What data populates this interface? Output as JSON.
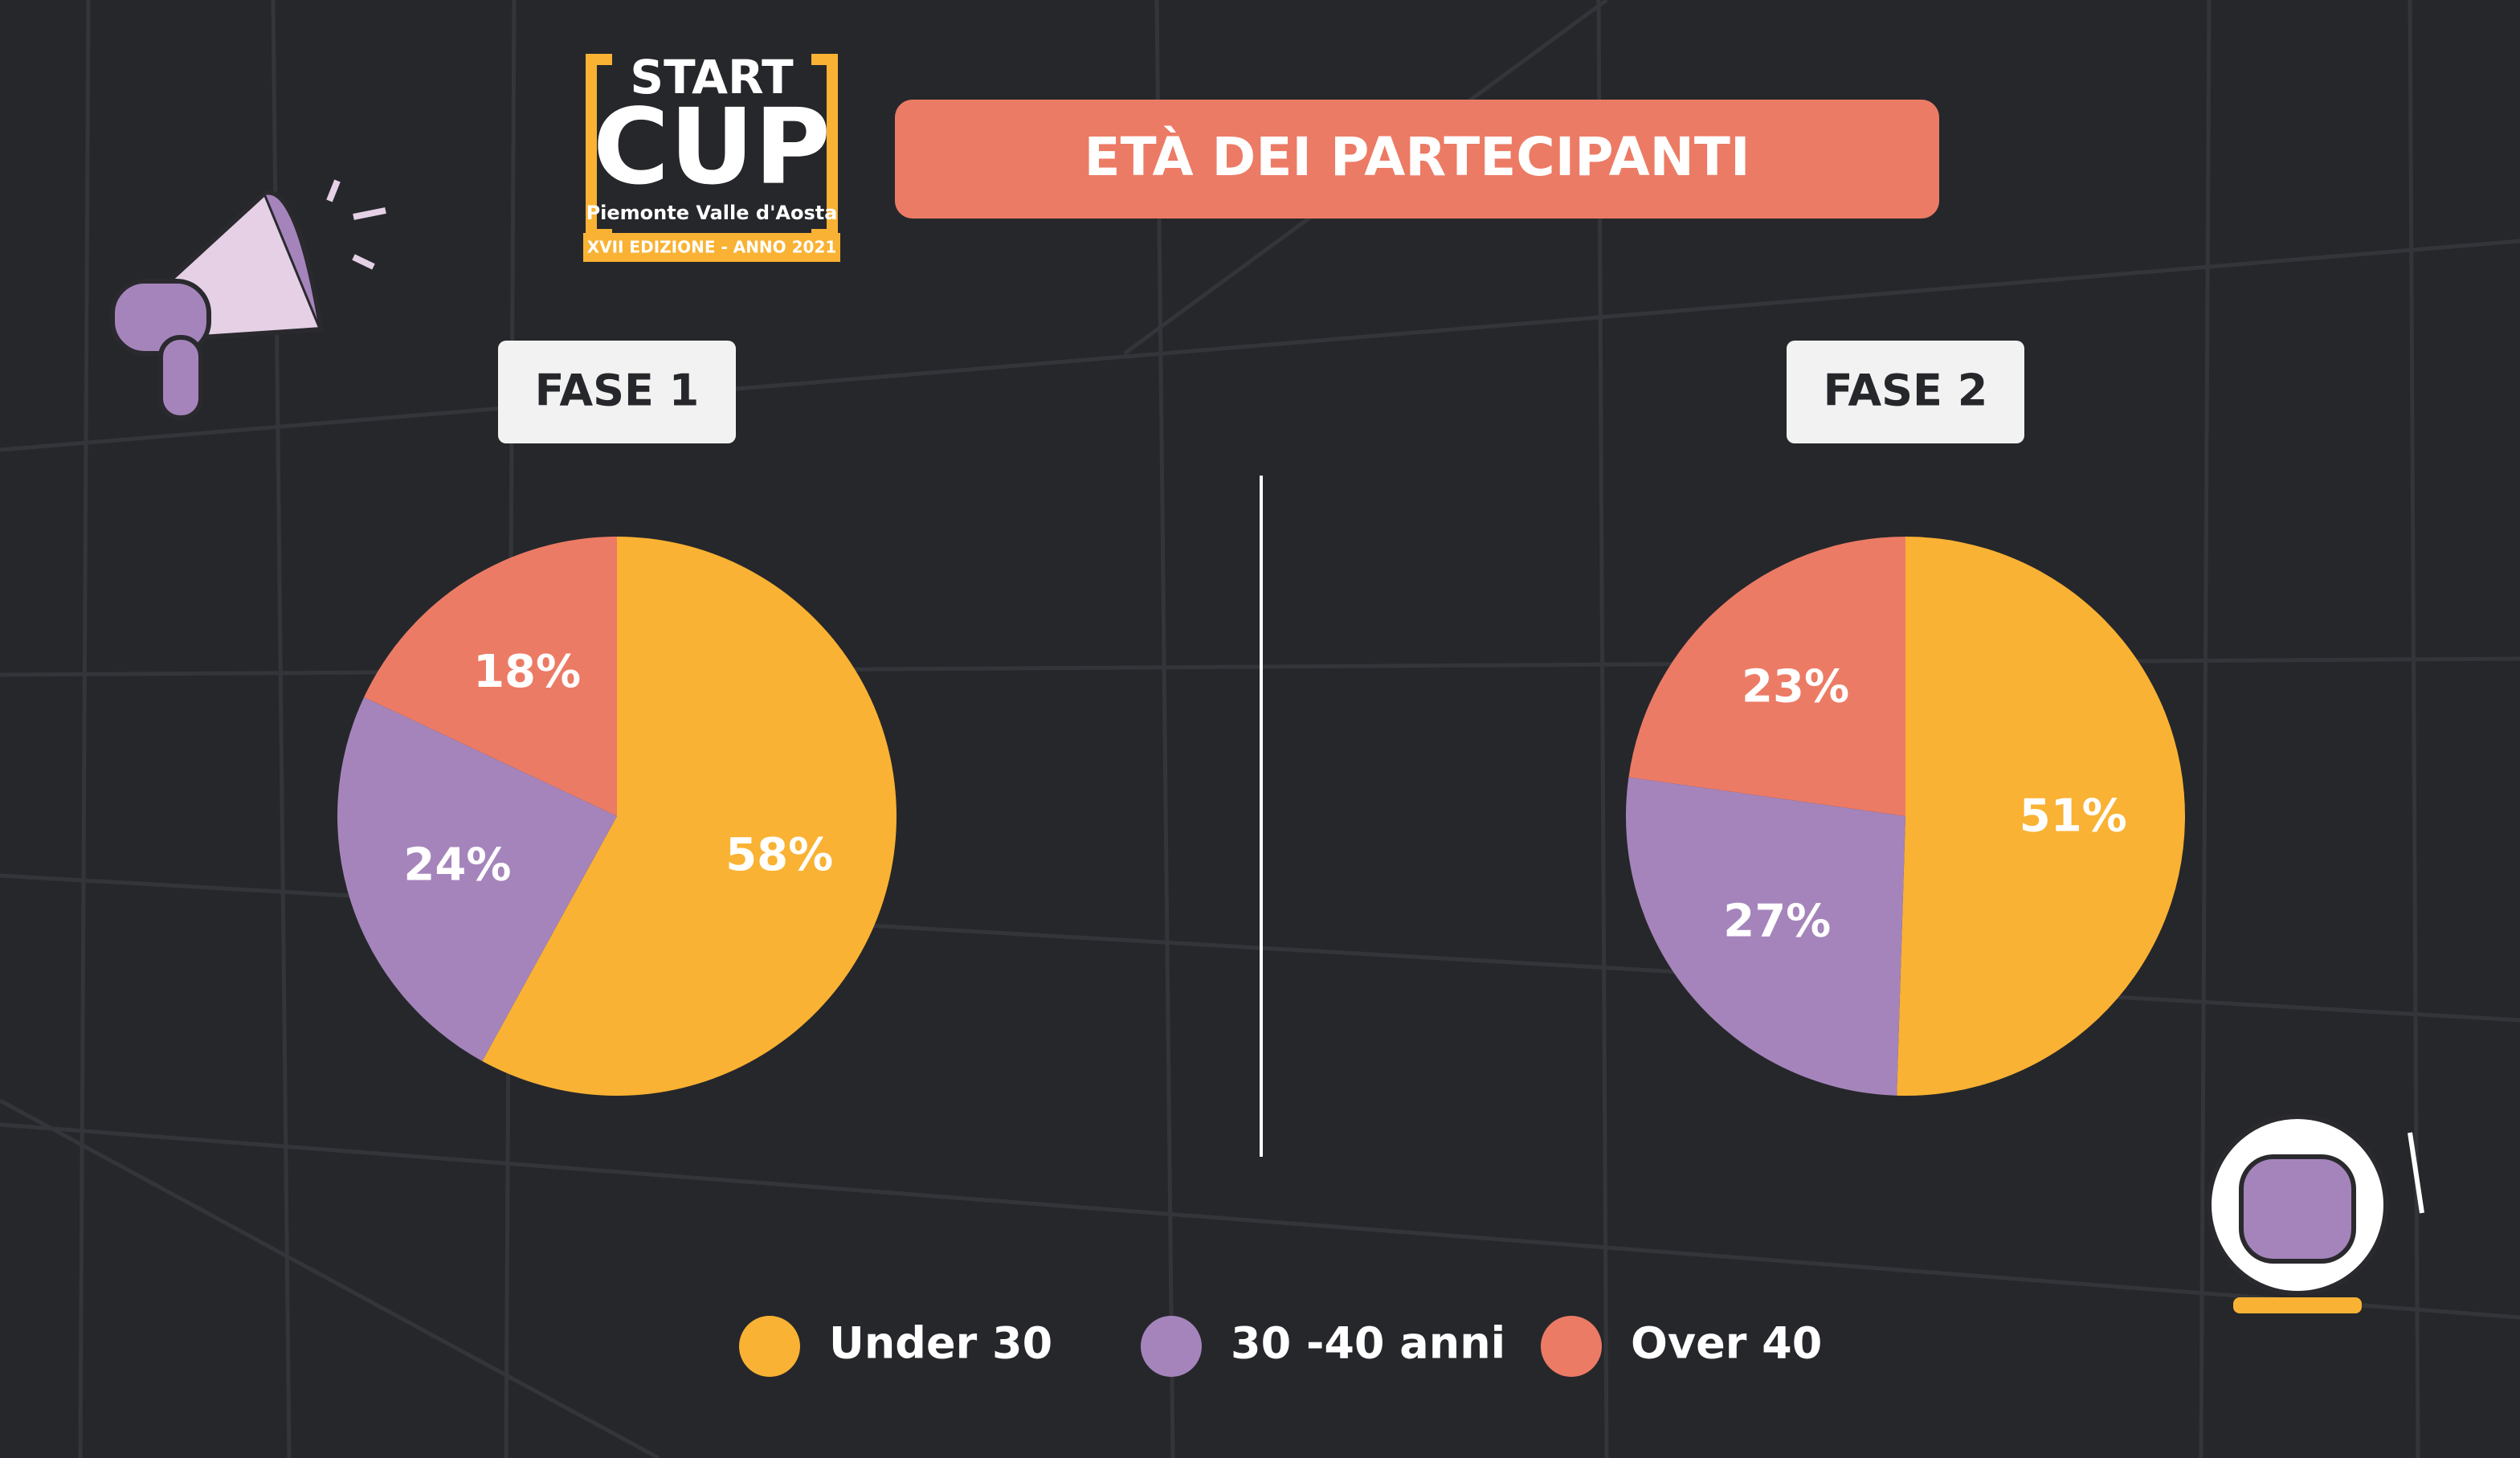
{
  "header": {
    "logo": [
      "START",
      "CUP",
      "Piemonte Valle d'Aosta",
      "XVII EDIZIONE - ANNO 2021"
    ],
    "title": "ETÀ DEI PARTECIPANTI"
  },
  "chart_data": [
    {
      "type": "pie",
      "title": "FASE 1",
      "categories": [
        "Under 30",
        "30 -40 anni",
        "Over 40"
      ],
      "values": [
        58,
        24,
        18
      ],
      "value_labels": [
        "58%",
        "24%",
        "18%"
      ],
      "colors": [
        "#f9b233",
        "#a584bb",
        "#ec7b65"
      ]
    },
    {
      "type": "pie",
      "title": "FASE 2",
      "categories": [
        "Under 30",
        "30 -40 anni",
        "Over 40"
      ],
      "values": [
        51,
        27,
        23
      ],
      "value_labels": [
        "51%",
        "27%",
        "23%"
      ],
      "colors": [
        "#f9b233",
        "#a584bb",
        "#ec7b65"
      ]
    }
  ]
}
